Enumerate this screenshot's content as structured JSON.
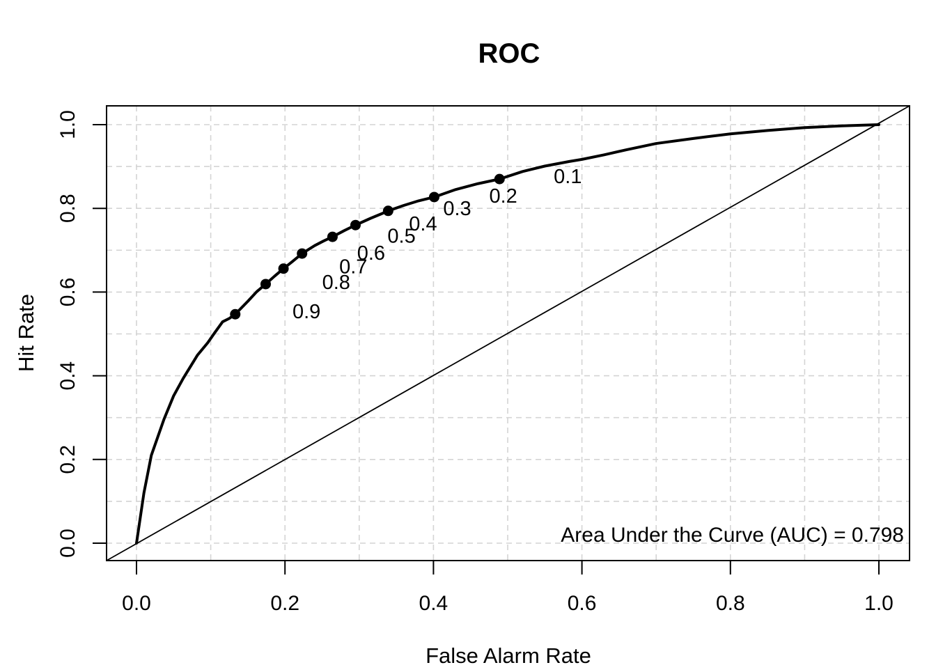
{
  "chart_data": {
    "type": "line",
    "title": "ROC",
    "xlabel": "False Alarm Rate",
    "ylabel": "Hit Rate",
    "xlim": [
      0,
      1
    ],
    "ylim": [
      0,
      1
    ],
    "xtick_values": [
      0.0,
      0.2,
      0.4,
      0.6,
      0.8,
      1.0
    ],
    "xtick_labels": [
      "0.0",
      "0.2",
      "0.4",
      "0.6",
      "0.8",
      "1.0"
    ],
    "ytick_values": [
      0.0,
      0.2,
      0.4,
      0.6,
      0.8,
      1.0
    ],
    "ytick_labels": [
      "0.0",
      "0.2",
      "0.4",
      "0.6",
      "0.8",
      "1.0"
    ],
    "grid": {
      "on": true,
      "step": 0.1,
      "style": "dashed",
      "color": "#d4d4d4"
    },
    "legend_position": "none",
    "annotation": "Area Under the Curve (AUC) = 0.798",
    "auc": 0.798,
    "diagonal_reference": {
      "from": [
        0,
        0
      ],
      "to": [
        1,
        1
      ]
    },
    "line_color": "#000000",
    "series": [
      {
        "name": "ROC curve",
        "color": "#000000",
        "points": [
          [
            0,
            0
          ],
          [
            0.01,
            0.12
          ],
          [
            0.02,
            0.21
          ],
          [
            0.037,
            0.296
          ],
          [
            0.05,
            0.352
          ],
          [
            0.063,
            0.394
          ],
          [
            0.082,
            0.449
          ],
          [
            0.096,
            0.479
          ],
          [
            0.105,
            0.502
          ],
          [
            0.116,
            0.529
          ],
          [
            0.125,
            0.537
          ],
          [
            0.133,
            0.547
          ],
          [
            0.15,
            0.578
          ],
          [
            0.162,
            0.601
          ],
          [
            0.174,
            0.619
          ],
          [
            0.186,
            0.638
          ],
          [
            0.198,
            0.656
          ],
          [
            0.21,
            0.673
          ],
          [
            0.223,
            0.692
          ],
          [
            0.24,
            0.711
          ],
          [
            0.252,
            0.722
          ],
          [
            0.264,
            0.732
          ],
          [
            0.28,
            0.747
          ],
          [
            0.295,
            0.76
          ],
          [
            0.315,
            0.776
          ],
          [
            0.33,
            0.787
          ],
          [
            0.339,
            0.794
          ],
          [
            0.36,
            0.807
          ],
          [
            0.38,
            0.818
          ],
          [
            0.401,
            0.827
          ],
          [
            0.43,
            0.845
          ],
          [
            0.46,
            0.859
          ],
          [
            0.489,
            0.87
          ],
          [
            0.52,
            0.888
          ],
          [
            0.55,
            0.901
          ],
          [
            0.583,
            0.912
          ],
          [
            0.6,
            0.917
          ],
          [
            0.63,
            0.928
          ],
          [
            0.66,
            0.94
          ],
          [
            0.7,
            0.955
          ],
          [
            0.75,
            0.967
          ],
          [
            0.8,
            0.978
          ],
          [
            0.85,
            0.986
          ],
          [
            0.9,
            0.993
          ],
          [
            0.95,
            0.997
          ],
          [
            1,
            1
          ]
        ]
      }
    ],
    "threshold_points": [
      {
        "threshold": "0.9",
        "false_alarm_rate": 0.133,
        "hit_rate": 0.547,
        "label_pos": [
          0.229,
          0.554
        ]
      },
      {
        "threshold": "0.8",
        "false_alarm_rate": 0.174,
        "hit_rate": 0.619,
        "label_pos": [
          0.269,
          0.624
        ]
      },
      {
        "threshold": "0.7",
        "false_alarm_rate": 0.198,
        "hit_rate": 0.656,
        "label_pos": [
          0.292,
          0.661
        ]
      },
      {
        "threshold": "0.6",
        "false_alarm_rate": 0.223,
        "hit_rate": 0.692,
        "label_pos": [
          0.316,
          0.694
        ]
      },
      {
        "threshold": "0.5",
        "false_alarm_rate": 0.264,
        "hit_rate": 0.732,
        "label_pos": [
          0.357,
          0.735
        ]
      },
      {
        "threshold": "0.4",
        "false_alarm_rate": 0.295,
        "hit_rate": 0.76,
        "label_pos": [
          0.386,
          0.764
        ]
      },
      {
        "threshold": "0.3",
        "false_alarm_rate": 0.339,
        "hit_rate": 0.794,
        "label_pos": [
          0.432,
          0.8
        ]
      },
      {
        "threshold": "0.2",
        "false_alarm_rate": 0.401,
        "hit_rate": 0.827,
        "label_pos": [
          0.494,
          0.83
        ]
      },
      {
        "threshold": "0.1",
        "false_alarm_rate": 0.489,
        "hit_rate": 0.87,
        "label_pos": [
          0.581,
          0.877
        ]
      }
    ]
  }
}
